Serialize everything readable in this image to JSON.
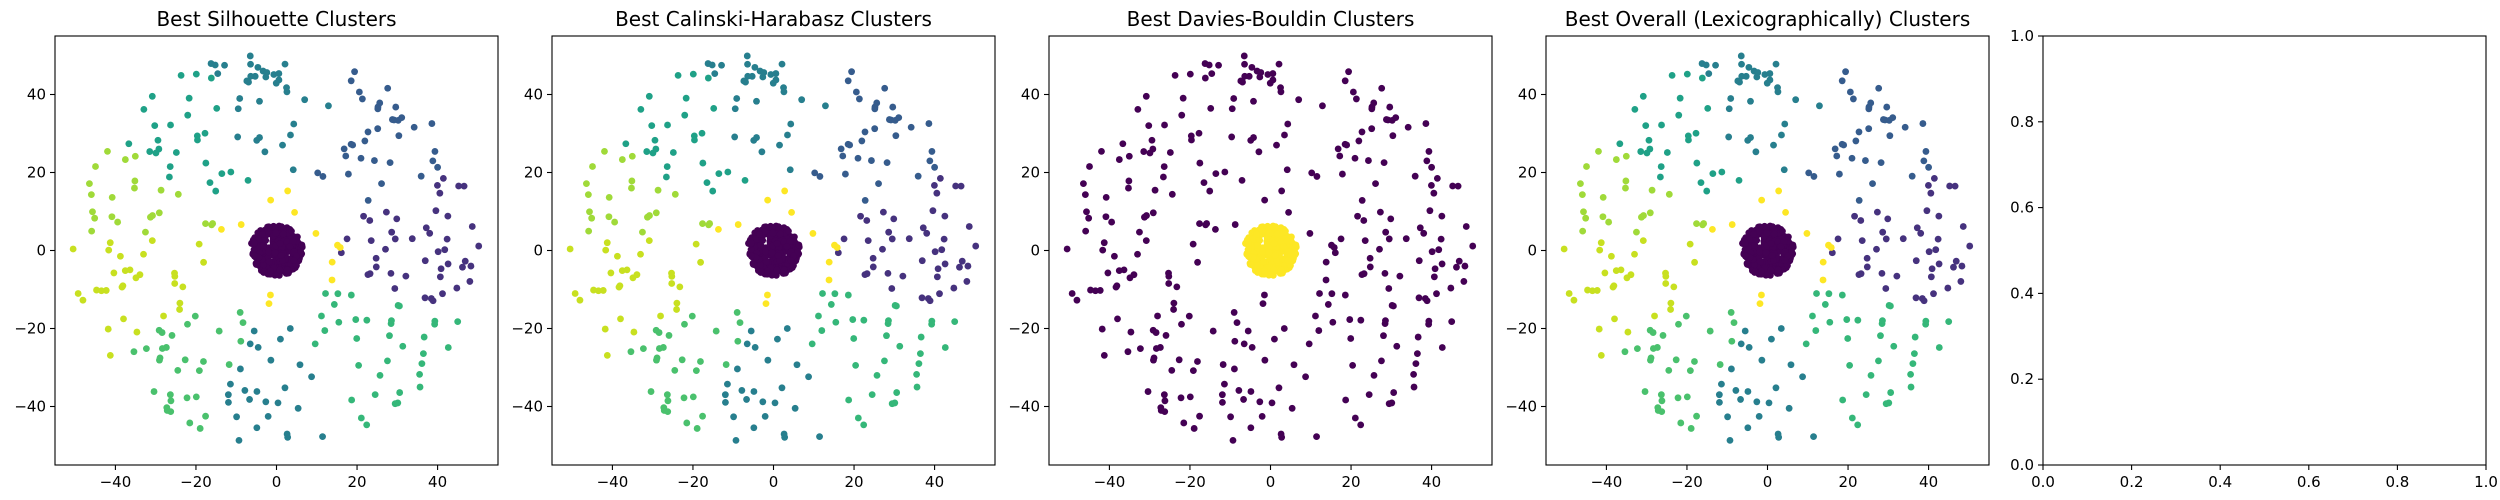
{
  "figure": {
    "panels": [
      {
        "id": "silhouette",
        "title": "Best Silhouette Clusters"
      },
      {
        "id": "calinski",
        "title": "Best Calinski-Harabasz Clusters"
      },
      {
        "id": "davies",
        "title": "Best Davies-Bouldin Clusters"
      },
      {
        "id": "overall",
        "title": "Best Overall (Lexicographically) Clusters"
      },
      {
        "id": "empty",
        "title": ""
      }
    ]
  },
  "chart_data": [
    {
      "type": "scatter",
      "title": "Best Silhouette Clusters",
      "xlim": [
        -55,
        55
      ],
      "ylim": [
        -55,
        55
      ],
      "xticks": [
        "-40",
        "-20",
        "0",
        "20",
        "40"
      ],
      "yticks": [
        "-40",
        "-20",
        "0",
        "20",
        "40"
      ],
      "colormap": "viridis",
      "point_color": "#440154",
      "description_of_data": "dense core cluster of ~300 points within radius 7 at origin; ~300 sparse points on a ring between radius 8 and 50; outer ring colored by polar angle into many clusters",
      "core": {
        "center": [
          0,
          0
        ],
        "radius": 6.5,
        "count": 320,
        "cluster_color": "#440154"
      },
      "ring": {
        "inner_radius": 8,
        "outer_radius": 51,
        "count": 300,
        "coloring": "angle-sectors"
      }
    },
    {
      "type": "scatter",
      "title": "Best Calinski-Harabasz Clusters",
      "xlim": [
        -55,
        55
      ],
      "ylim": [
        -55,
        55
      ],
      "xticks": [
        "-40",
        "-20",
        "0",
        "20",
        "40"
      ],
      "yticks": [
        "-40",
        "-20",
        "0",
        "20",
        "40"
      ],
      "colormap": "viridis",
      "core": {
        "center": [
          0,
          0
        ],
        "radius": 6.5,
        "count": 320,
        "cluster_color": "#440154"
      },
      "ring": {
        "inner_radius": 8,
        "outer_radius": 51,
        "count": 300,
        "coloring": "angle-sectors"
      }
    },
    {
      "type": "scatter",
      "title": "Best Davies-Bouldin Clusters",
      "xlim": [
        -55,
        55
      ],
      "ylim": [
        -55,
        55
      ],
      "xticks": [
        "-40",
        "-20",
        "0",
        "20",
        "40"
      ],
      "yticks": [
        "-40",
        "-20",
        "0",
        "20",
        "40"
      ],
      "colormap": "viridis",
      "core": {
        "center": [
          0,
          0
        ],
        "radius": 6.5,
        "count": 320,
        "cluster_color": "#fde725"
      },
      "ring": {
        "inner_radius": 8,
        "outer_radius": 51,
        "count": 300,
        "coloring": "single",
        "cluster_color": "#440154"
      }
    },
    {
      "type": "scatter",
      "title": "Best Overall (Lexicographically) Clusters",
      "xlim": [
        -55,
        55
      ],
      "ylim": [
        -55,
        55
      ],
      "xticks": [
        "-40",
        "-20",
        "0",
        "20",
        "40"
      ],
      "yticks": [
        "-40",
        "-20",
        "0",
        "20",
        "40"
      ],
      "colormap": "viridis",
      "core": {
        "center": [
          0,
          0
        ],
        "radius": 6.5,
        "count": 320,
        "cluster_color": "#440154"
      },
      "ring": {
        "inner_radius": 8,
        "outer_radius": 51,
        "count": 300,
        "coloring": "angle-sectors"
      }
    },
    {
      "type": "scatter",
      "title": "",
      "xlim": [
        0,
        1
      ],
      "ylim": [
        0,
        1
      ],
      "xticks": [
        "0.0",
        "0.2",
        "0.4",
        "0.6",
        "0.8",
        "1.0"
      ],
      "yticks": [
        "0.0",
        "0.2",
        "0.4",
        "0.6",
        "0.8",
        "1.0"
      ],
      "points": []
    }
  ]
}
